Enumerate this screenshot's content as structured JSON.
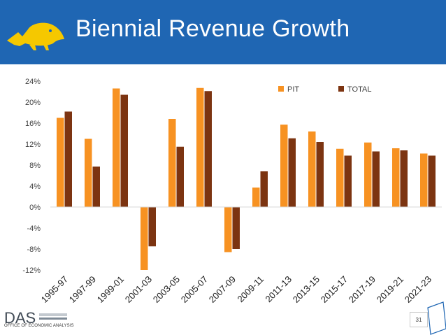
{
  "header": {
    "title": "Biennial Revenue Growth"
  },
  "colors": {
    "header_bg": "#1f66b3",
    "pit": "#f79222",
    "total": "#7c3411",
    "logo": "#f5c800"
  },
  "icons": {
    "logo": "beaver-logo-icon",
    "footer": "das-logo-icon"
  },
  "footer": {
    "logo_text": "DAS",
    "org": "OFFICE OF ECONOMIC ANALYSIS",
    "page": "31"
  },
  "chart_data": {
    "type": "bar",
    "title": "",
    "xlabel": "",
    "ylabel": "",
    "categories": [
      "1995-97",
      "1997-99",
      "1999-01",
      "2001-03",
      "2003-05",
      "2005-07",
      "2007-09",
      "2009-11",
      "2011-13",
      "2013-15",
      "2015-17",
      "2017-19",
      "2019-21",
      "2021-23"
    ],
    "series": [
      {
        "name": "PIT",
        "values": [
          17.0,
          13.0,
          22.6,
          -12.0,
          16.8,
          22.7,
          -8.6,
          3.7,
          15.7,
          14.4,
          11.1,
          12.3,
          11.2,
          10.2
        ]
      },
      {
        "name": "TOTAL",
        "values": [
          18.2,
          7.7,
          21.4,
          -7.5,
          11.5,
          22.1,
          -8.0,
          6.8,
          13.1,
          12.4,
          9.8,
          10.6,
          10.8,
          9.8
        ]
      }
    ],
    "ylim": [
      -12,
      24
    ],
    "yticks": [
      "24%",
      "20%",
      "16%",
      "12%",
      "8%",
      "4%",
      "0%",
      "-4%",
      "-8%",
      "-12%"
    ],
    "ytick_values": [
      24,
      20,
      16,
      12,
      8,
      4,
      0,
      -4,
      -8,
      -12
    ],
    "legend": "top-right",
    "grid": false
  }
}
